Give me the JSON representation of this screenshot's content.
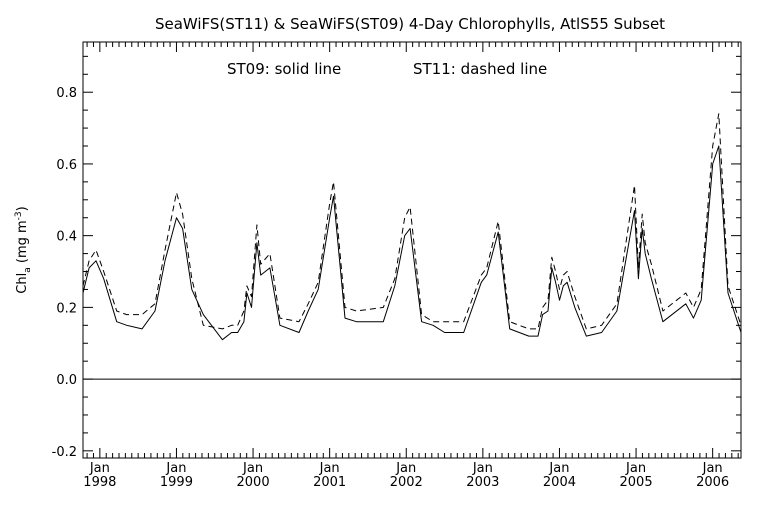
{
  "chart_data": {
    "type": "line",
    "title": "SeaWiFS(ST11) & SeaWiFS(ST09) 4-Day Chlorophylls, AtlS55 Subset",
    "annotations": [
      {
        "text": "ST09: solid line"
      },
      {
        "text": "ST11: dashed line"
      }
    ],
    "ylabel": {
      "base": "Chl",
      "sub": "a",
      "pre": " (mg m",
      "sup": "-3",
      "post": ")"
    },
    "xlabel": "",
    "xlim": [
      1997.78,
      2006.37
    ],
    "ylim": [
      -0.22,
      0.94
    ],
    "yticks": [
      {
        "value": -0.2,
        "label": "-0.2"
      },
      {
        "value": 0.0,
        "label": "0.0"
      },
      {
        "value": 0.2,
        "label": "0.2"
      },
      {
        "value": 0.4,
        "label": "0.4"
      },
      {
        "value": 0.6,
        "label": "0.6"
      },
      {
        "value": 0.8,
        "label": "0.8"
      }
    ],
    "xticks": [
      {
        "value": 1998,
        "month": "Jan",
        "year": "1998"
      },
      {
        "value": 1999,
        "month": "Jan",
        "year": "1999"
      },
      {
        "value": 2000,
        "month": "Jan",
        "year": "2000"
      },
      {
        "value": 2001,
        "month": "Jan",
        "year": "2001"
      },
      {
        "value": 2002,
        "month": "Jan",
        "year": "2002"
      },
      {
        "value": 2003,
        "month": "Jan",
        "year": "2003"
      },
      {
        "value": 2004,
        "month": "Jan",
        "year": "2004"
      },
      {
        "value": 2005,
        "month": "Jan",
        "year": "2005"
      },
      {
        "value": 2006,
        "month": "Jan",
        "year": "2006"
      }
    ],
    "zero_line": 0.0,
    "grid": false,
    "series": [
      {
        "style": "solid",
        "x": [
          1997.78,
          1997.86,
          1997.95,
          1998.05,
          1998.22,
          1998.35,
          1998.55,
          1998.72,
          1998.85,
          1999.0,
          1999.08,
          1999.2,
          1999.35,
          1999.6,
          1999.72,
          1999.8,
          1999.88,
          1999.92,
          1999.98,
          2000.05,
          2000.1,
          2000.22,
          2000.35,
          2000.6,
          2000.72,
          2000.85,
          2001.0,
          2001.05,
          2001.2,
          2001.35,
          2001.7,
          2001.85,
          2001.98,
          2002.05,
          2002.2,
          2002.35,
          2002.5,
          2002.75,
          2002.98,
          2003.05,
          2003.2,
          2003.35,
          2003.6,
          2003.72,
          2003.78,
          2003.85,
          2003.9,
          2003.95,
          2004.0,
          2004.05,
          2004.1,
          2004.2,
          2004.35,
          2004.55,
          2004.75,
          2004.98,
          2005.03,
          2005.08,
          2005.12,
          2005.2,
          2005.35,
          2005.65,
          2005.75,
          2005.85,
          2006.0,
          2006.08,
          2006.2,
          2006.37
        ],
        "y": [
          0.24,
          0.31,
          0.33,
          0.28,
          0.16,
          0.15,
          0.14,
          0.19,
          0.33,
          0.45,
          0.42,
          0.25,
          0.18,
          0.11,
          0.13,
          0.13,
          0.16,
          0.24,
          0.2,
          0.38,
          0.29,
          0.31,
          0.15,
          0.13,
          0.19,
          0.25,
          0.45,
          0.51,
          0.17,
          0.16,
          0.16,
          0.26,
          0.4,
          0.42,
          0.16,
          0.15,
          0.13,
          0.13,
          0.27,
          0.29,
          0.41,
          0.14,
          0.12,
          0.12,
          0.18,
          0.19,
          0.31,
          0.27,
          0.22,
          0.26,
          0.27,
          0.2,
          0.12,
          0.13,
          0.19,
          0.47,
          0.28,
          0.42,
          0.35,
          0.28,
          0.16,
          0.21,
          0.17,
          0.22,
          0.6,
          0.65,
          0.24,
          0.13
        ]
      },
      {
        "style": "dashed",
        "x": [
          1997.78,
          1997.86,
          1997.95,
          1998.05,
          1998.22,
          1998.35,
          1998.55,
          1998.72,
          1998.85,
          1999.0,
          1999.08,
          1999.2,
          1999.35,
          1999.6,
          1999.72,
          1999.8,
          1999.88,
          1999.92,
          1999.98,
          2000.05,
          2000.1,
          2000.22,
          2000.35,
          2000.6,
          2000.72,
          2000.85,
          2001.0,
          2001.05,
          2001.2,
          2001.35,
          2001.7,
          2001.85,
          2001.98,
          2002.05,
          2002.2,
          2002.35,
          2002.5,
          2002.75,
          2002.98,
          2003.05,
          2003.2,
          2003.35,
          2003.6,
          2003.72,
          2003.78,
          2003.85,
          2003.9,
          2003.95,
          2004.0,
          2004.05,
          2004.1,
          2004.2,
          2004.35,
          2004.55,
          2004.75,
          2004.98,
          2005.03,
          2005.08,
          2005.12,
          2005.2,
          2005.35,
          2005.65,
          2005.75,
          2005.85,
          2006.0,
          2006.08,
          2006.2,
          2006.37
        ],
        "y": [
          0.26,
          0.33,
          0.36,
          0.3,
          0.19,
          0.18,
          0.18,
          0.21,
          0.36,
          0.52,
          0.46,
          0.28,
          0.15,
          0.14,
          0.15,
          0.15,
          0.19,
          0.26,
          0.23,
          0.43,
          0.32,
          0.35,
          0.17,
          0.16,
          0.21,
          0.27,
          0.49,
          0.55,
          0.2,
          0.19,
          0.2,
          0.28,
          0.45,
          0.48,
          0.18,
          0.16,
          0.16,
          0.16,
          0.29,
          0.31,
          0.44,
          0.16,
          0.14,
          0.14,
          0.2,
          0.22,
          0.34,
          0.3,
          0.25,
          0.29,
          0.3,
          0.23,
          0.14,
          0.15,
          0.21,
          0.54,
          0.31,
          0.46,
          0.38,
          0.32,
          0.19,
          0.24,
          0.2,
          0.25,
          0.65,
          0.74,
          0.26,
          0.15
        ]
      }
    ]
  }
}
